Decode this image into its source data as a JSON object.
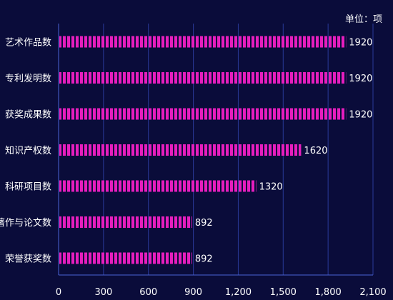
{
  "chart_data": {
    "type": "bar",
    "orientation": "horizontal",
    "unit_label": "单位：项",
    "categories": [
      "艺术作品数",
      "专利发明数",
      "获奖成果数",
      "知识产权数",
      "科研项目数",
      "著作与论文数",
      "荣誉获奖数"
    ],
    "values": [
      1920,
      1920,
      1920,
      1620,
      1320,
      892,
      892
    ],
    "x_ticks": [
      "0",
      "300",
      "600",
      "900",
      "1,200",
      "1,500",
      "1,800",
      "2,100"
    ],
    "xlim": [
      0,
      2100
    ],
    "grid": "vertical",
    "bar_color": "#e61ebe",
    "grid_color": "#2a3a9a",
    "axis_color": "#4a63d6",
    "label_color": "#ffffff"
  }
}
